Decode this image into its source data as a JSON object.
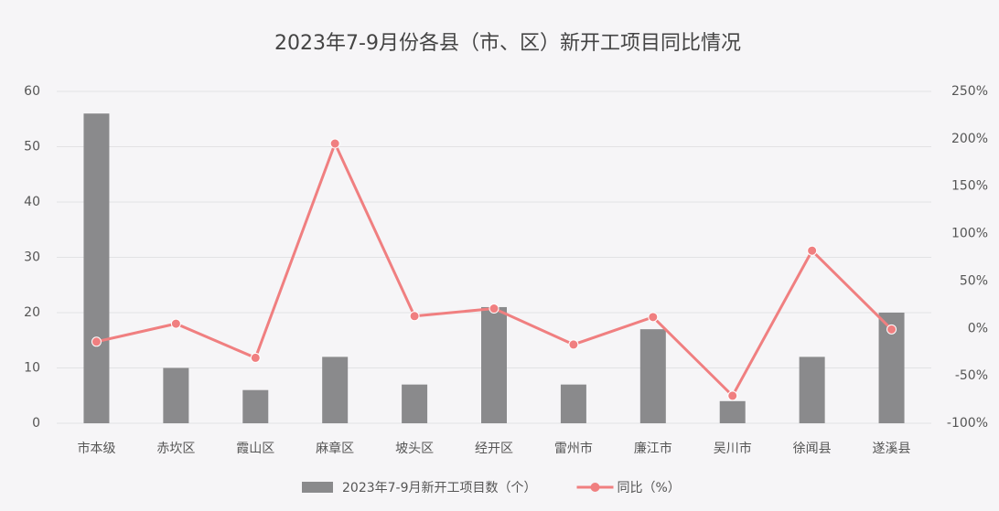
{
  "chart_data": {
    "type": "bar",
    "title": "2023年7-9月份各县（市、区）新开工项目同比情况",
    "categories": [
      "市本级",
      "赤坎区",
      "霞山区",
      "麻章区",
      "坡头区",
      "经开区",
      "雷州市",
      "廉江市",
      "吴川市",
      "徐闻县",
      "遂溪县"
    ],
    "series": [
      {
        "name": "2023年7-9月新开工项目数（个）",
        "type": "bar",
        "color": "#8a8a8c",
        "values": [
          56,
          10,
          6,
          12,
          7,
          21,
          7,
          17,
          4,
          12,
          20
        ]
      },
      {
        "name": "同比（%）",
        "type": "line",
        "axis": "y2",
        "color": "#f07f80",
        "values": [
          -14,
          5,
          -31,
          195,
          13,
          21,
          -17,
          12,
          -71,
          82,
          -1
        ]
      }
    ],
    "ylim": [
      0,
      60
    ],
    "yticks": [
      0,
      10,
      20,
      30,
      40,
      50,
      60
    ],
    "y2lim": [
      -100,
      250
    ],
    "y2ticks": [
      {
        "value": -100,
        "label": "-100%"
      },
      {
        "value": -50,
        "label": "-50%"
      },
      {
        "value": 0,
        "label": "0%"
      },
      {
        "value": 50,
        "label": "50%"
      },
      {
        "value": 100,
        "label": "100%"
      },
      {
        "value": 150,
        "label": "150%"
      },
      {
        "value": 200,
        "label": "200%"
      },
      {
        "value": 250,
        "label": "250%"
      }
    ],
    "grid": true,
    "legend": "bottom"
  }
}
